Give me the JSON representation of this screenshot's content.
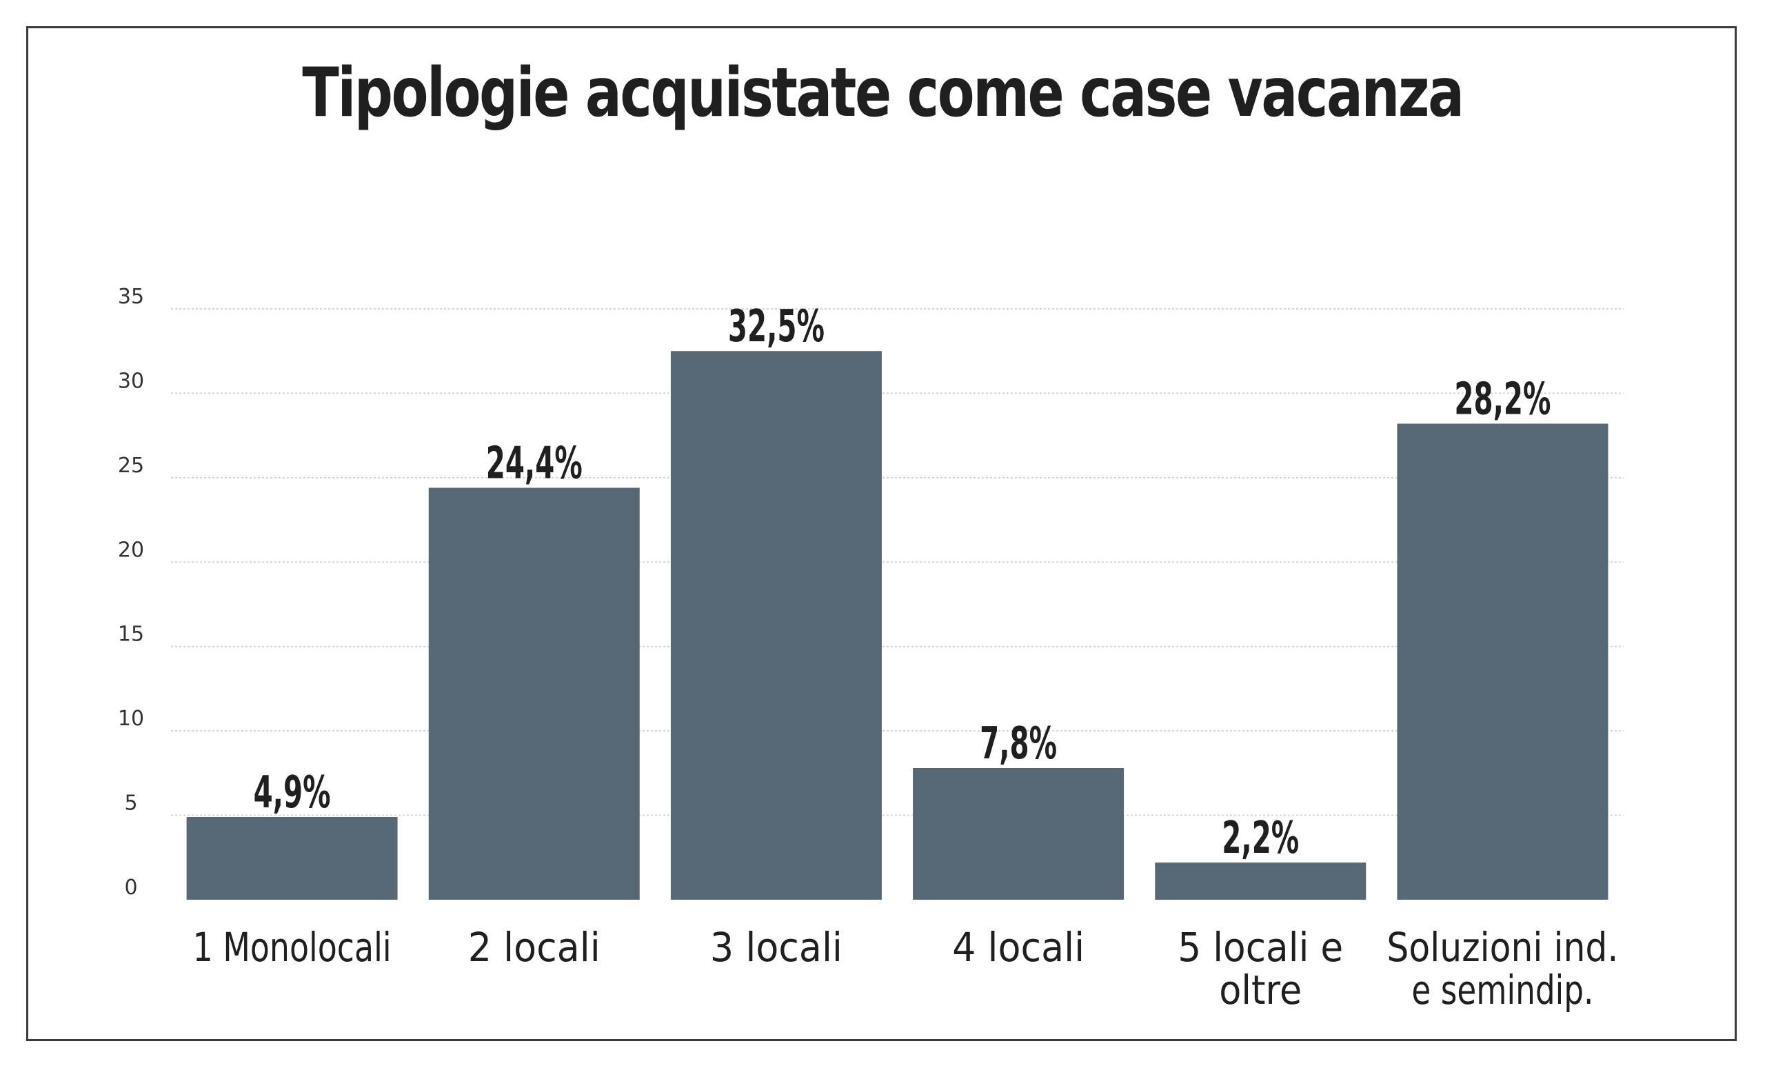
{
  "chart_data": {
    "type": "bar",
    "title": "Tipologie acquistate come case vacanza",
    "categories": [
      [
        "1 Monolocali"
      ],
      [
        "2 locali"
      ],
      [
        "3 locali"
      ],
      [
        "4 locali"
      ],
      [
        "5 locali e",
        "oltre"
      ],
      [
        "Soluzioni ind.",
        "e semindip."
      ]
    ],
    "values": [
      4.9,
      24.4,
      32.5,
      7.8,
      2.2,
      28.2
    ],
    "data_labels": [
      "4,9%",
      "24,4%",
      "32,5%",
      "7,8%",
      "2,2%",
      "28,2%"
    ],
    "yticks": [
      0,
      5,
      10,
      15,
      20,
      25,
      30,
      35
    ],
    "ylim": [
      0,
      35
    ],
    "xlabel": "",
    "ylabel": "",
    "grid": "horizontal dotted",
    "legend": "none",
    "bar_color": "#576874",
    "grid_color": "#d4d4d4"
  }
}
